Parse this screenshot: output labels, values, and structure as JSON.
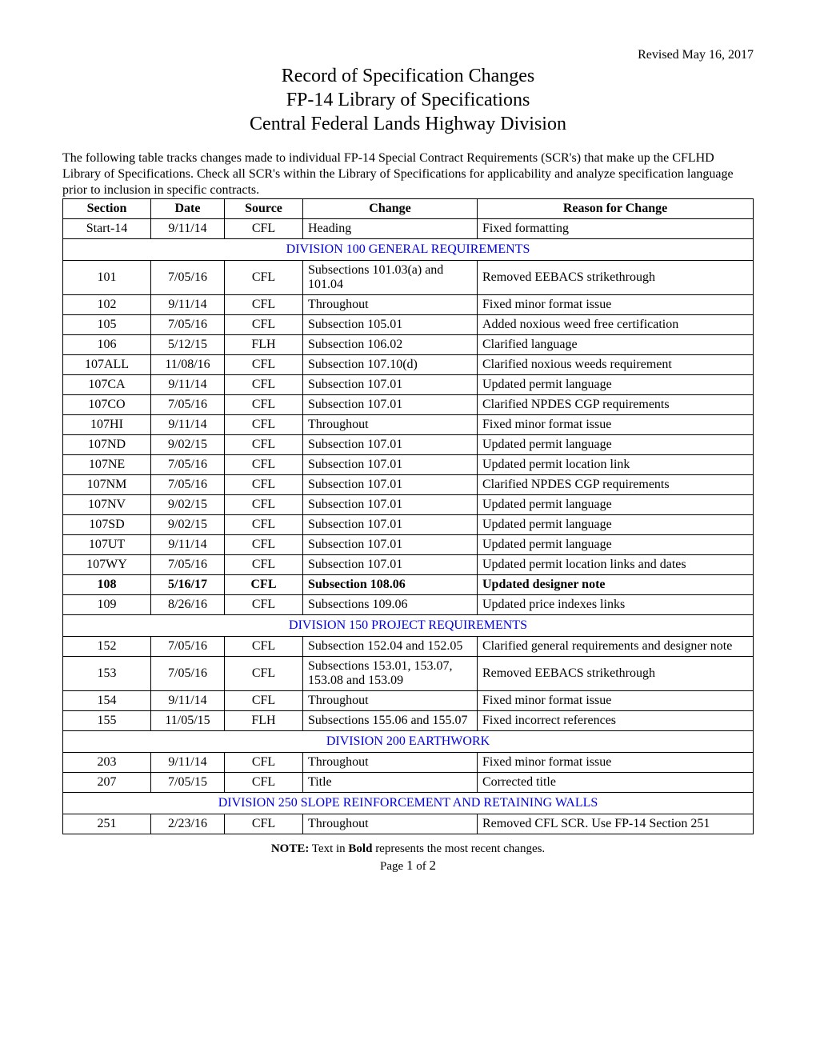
{
  "revised": "Revised May 16, 2017",
  "title": {
    "line1": "Record of Specification Changes",
    "line2": "FP-14 Library of Specifications",
    "line3": "Central Federal Lands Highway Division"
  },
  "intro": "The following table tracks changes made to individual FP-14 Special Contract Requirements (SCR's) that make up the CFLHD Library of Specifications.  Check all SCR's within the Library of Specifications for applicability and analyze specification language prior to inclusion in specific contracts.",
  "headers": {
    "section": "Section",
    "date": "Date",
    "source": "Source",
    "change": "Change",
    "reason": "Reason for Change"
  },
  "rows": [
    {
      "type": "data",
      "section": "Start-14",
      "date": "9/11/14",
      "source": "CFL",
      "change": "Heading",
      "reason": "Fixed formatting"
    },
    {
      "type": "division",
      "label": "DIVISION 100  GENERAL REQUIREMENTS"
    },
    {
      "type": "data",
      "section": "101",
      "date": "7/05/16",
      "source": "CFL",
      "change": "Subsections 101.03(a) and 101.04",
      "reason": "Removed EEBACS strikethrough"
    },
    {
      "type": "data",
      "section": "102",
      "date": "9/11/14",
      "source": "CFL",
      "change": "Throughout",
      "reason": "Fixed minor format issue"
    },
    {
      "type": "data",
      "section": "105",
      "date": "7/05/16",
      "source": "CFL",
      "change": "Subsection 105.01",
      "reason": "Added noxious weed free certification"
    },
    {
      "type": "data",
      "section": "106",
      "date": "5/12/15",
      "source": "FLH",
      "change": "Subsection 106.02",
      "reason": "Clarified language"
    },
    {
      "type": "data",
      "section": "107ALL",
      "date": "11/08/16",
      "source": "CFL",
      "change": "Subsection 107.10(d)",
      "reason": "Clarified noxious weeds requirement"
    },
    {
      "type": "data",
      "section": "107CA",
      "date": "9/11/14",
      "source": "CFL",
      "change": "Subsection 107.01",
      "reason": "Updated permit language"
    },
    {
      "type": "data",
      "section": "107CO",
      "date": "7/05/16",
      "source": "CFL",
      "change": "Subsection 107.01",
      "reason": "Clarified NPDES CGP requirements"
    },
    {
      "type": "data",
      "section": "107HI",
      "date": "9/11/14",
      "source": "CFL",
      "change": "Throughout",
      "reason": "Fixed minor format issue"
    },
    {
      "type": "data",
      "section": "107ND",
      "date": "9/02/15",
      "source": "CFL",
      "change": "Subsection 107.01",
      "reason": "Updated permit language"
    },
    {
      "type": "data",
      "section": "107NE",
      "date": "7/05/16",
      "source": "CFL",
      "change": "Subsection 107.01",
      "reason": "Updated permit location link"
    },
    {
      "type": "data",
      "section": "107NM",
      "date": "7/05/16",
      "source": "CFL",
      "change": "Subsection 107.01",
      "reason": "Clarified NPDES CGP requirements"
    },
    {
      "type": "data",
      "section": "107NV",
      "date": "9/02/15",
      "source": "CFL",
      "change": "Subsection 107.01",
      "reason": "Updated permit language"
    },
    {
      "type": "data",
      "section": "107SD",
      "date": "9/02/15",
      "source": "CFL",
      "change": "Subsection 107.01",
      "reason": "Updated permit language"
    },
    {
      "type": "data",
      "section": "107UT",
      "date": "9/11/14",
      "source": "CFL",
      "change": "Subsection 107.01",
      "reason": "Updated permit language"
    },
    {
      "type": "data",
      "section": "107WY",
      "date": "7/05/16",
      "source": "CFL",
      "change": "Subsection 107.01",
      "reason": "Updated permit location links and dates"
    },
    {
      "type": "data",
      "bold": true,
      "section": "108",
      "date": "5/16/17",
      "source": "CFL",
      "change": "Subsection 108.06",
      "reason": "Updated designer note"
    },
    {
      "type": "data",
      "section": "109",
      "date": "8/26/16",
      "source": "CFL",
      "change": "Subsections 109.06",
      "reason": "Updated price indexes links"
    },
    {
      "type": "division",
      "label": "DIVISION 150  PROJECT REQUIREMENTS"
    },
    {
      "type": "data",
      "section": "152",
      "date": "7/05/16",
      "source": "CFL",
      "change": "Subsection 152.04 and 152.05",
      "reason": "Clarified general requirements and designer note"
    },
    {
      "type": "data",
      "section": "153",
      "date": "7/05/16",
      "source": "CFL",
      "change": "Subsections 153.01, 153.07, 153.08 and 153.09",
      "reason": "Removed EEBACS strikethrough"
    },
    {
      "type": "data",
      "section": "154",
      "date": "9/11/14",
      "source": "CFL",
      "change": "Throughout",
      "reason": "Fixed minor format issue"
    },
    {
      "type": "data",
      "section": "155",
      "date": "11/05/15",
      "source": "FLH",
      "change": "Subsections 155.06 and 155.07",
      "reason": "Fixed incorrect references"
    },
    {
      "type": "division",
      "label": "DIVISION 200  EARTHWORK"
    },
    {
      "type": "data",
      "section": "203",
      "date": "9/11/14",
      "source": "CFL",
      "change": "Throughout",
      "reason": "Fixed minor format issue"
    },
    {
      "type": "data",
      "section": "207",
      "date": "7/05/15",
      "source": "CFL",
      "change": "Title",
      "reason": "Corrected title"
    },
    {
      "type": "division",
      "label": "DIVISION 250  SLOPE REINFORCEMENT AND RETAINING WALLS"
    },
    {
      "type": "data",
      "section": "251",
      "date": "2/23/16",
      "source": "CFL",
      "change": "Throughout",
      "reason": "Removed CFL SCR. Use FP-14 Section 251"
    }
  ],
  "footer": {
    "note_label": "NOTE:",
    "note_text_pre": "  Text in ",
    "note_bold": "Bold",
    "note_text_post": " represents the most recent changes.",
    "page_pre": "Page ",
    "page_current": "1",
    "page_mid": " of ",
    "page_total": "2"
  },
  "colors": {
    "text": "#000000",
    "background": "#ffffff",
    "border": "#000000",
    "division_link": "#0000dd"
  }
}
